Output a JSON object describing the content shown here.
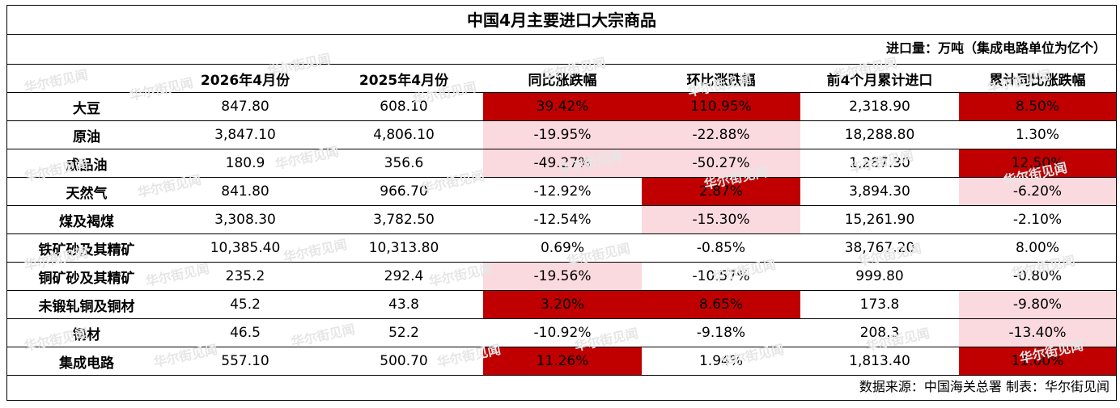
{
  "title": "中国4月主要进口大宗商品",
  "unit_note": "进口量：万吨（集成电路单位为亿个）",
  "source_note": "数据来源：中国海关总署 制表：华尔街见闻",
  "watermark": "华尔街见闻",
  "colors": {
    "strong": "#c00000",
    "light": "#fbdadf"
  },
  "columns": [
    "",
    "2026年4月份",
    "2025年4月份",
    "同比涨跌幅",
    "环比涨跌幅",
    "前4个月累计进口",
    "累计同比涨跌幅"
  ],
  "rows": [
    {
      "name": "大豆",
      "cells": [
        "847.80",
        "608.10",
        "39.42%",
        "110.95%",
        "2,318.90",
        "8.50%"
      ],
      "shade": [
        "",
        "",
        "hi",
        "hi",
        "",
        "hi"
      ]
    },
    {
      "name": "原油",
      "cells": [
        "3,847.10",
        "4,806.10",
        "-19.95%",
        "-22.88%",
        "18,288.80",
        "1.30%"
      ],
      "shade": [
        "",
        "",
        "lo",
        "lo",
        "",
        ""
      ]
    },
    {
      "name": "成品油",
      "cells": [
        "180.9",
        "356.6",
        "-49.27%",
        "-50.27%",
        "1,287.30",
        "12.50%"
      ],
      "shade": [
        "",
        "",
        "lo",
        "lo",
        "",
        "hi"
      ]
    },
    {
      "name": "天然气",
      "cells": [
        "841.80",
        "966.70",
        "-12.92%",
        "2.87%",
        "3,894.30",
        "-6.20%"
      ],
      "shade": [
        "",
        "",
        "",
        "hi",
        "",
        "lo"
      ]
    },
    {
      "name": "煤及褐煤",
      "cells": [
        "3,308.30",
        "3,782.50",
        "-12.54%",
        "-15.30%",
        "15,261.90",
        "-2.10%"
      ],
      "shade": [
        "",
        "",
        "",
        "lo",
        "",
        ""
      ]
    },
    {
      "name": "铁矿砂及其精矿",
      "cells": [
        "10,385.40",
        "10,313.80",
        "0.69%",
        "-0.85%",
        "38,767.20",
        "8.00%"
      ],
      "shade": [
        "",
        "",
        "",
        "",
        "",
        ""
      ]
    },
    {
      "name": "铜矿砂及其精矿",
      "cells": [
        "235.2",
        "292.4",
        "-19.56%",
        "-10.57%",
        "999.80",
        "-0.80%"
      ],
      "shade": [
        "",
        "",
        "lo",
        "",
        "",
        ""
      ]
    },
    {
      "name": "未锻轧铜及铜材",
      "cells": [
        "45.2",
        "43.8",
        "3.20%",
        "8.65%",
        "173.8",
        "-9.80%"
      ],
      "shade": [
        "",
        "",
        "hi",
        "hi",
        "",
        "lo"
      ]
    },
    {
      "name": "钢材",
      "cells": [
        "46.5",
        "52.2",
        "-10.92%",
        "-9.18%",
        "208.3",
        "-13.40%"
      ],
      "shade": [
        "",
        "",
        "",
        "",
        "",
        "lo"
      ]
    },
    {
      "name": "集成电路",
      "cells": [
        "557.10",
        "500.70",
        "11.26%",
        "1.94%",
        "1,813.40",
        "11.00%"
      ],
      "shade": [
        "",
        "",
        "hi",
        "",
        "",
        "hi"
      ]
    }
  ]
}
